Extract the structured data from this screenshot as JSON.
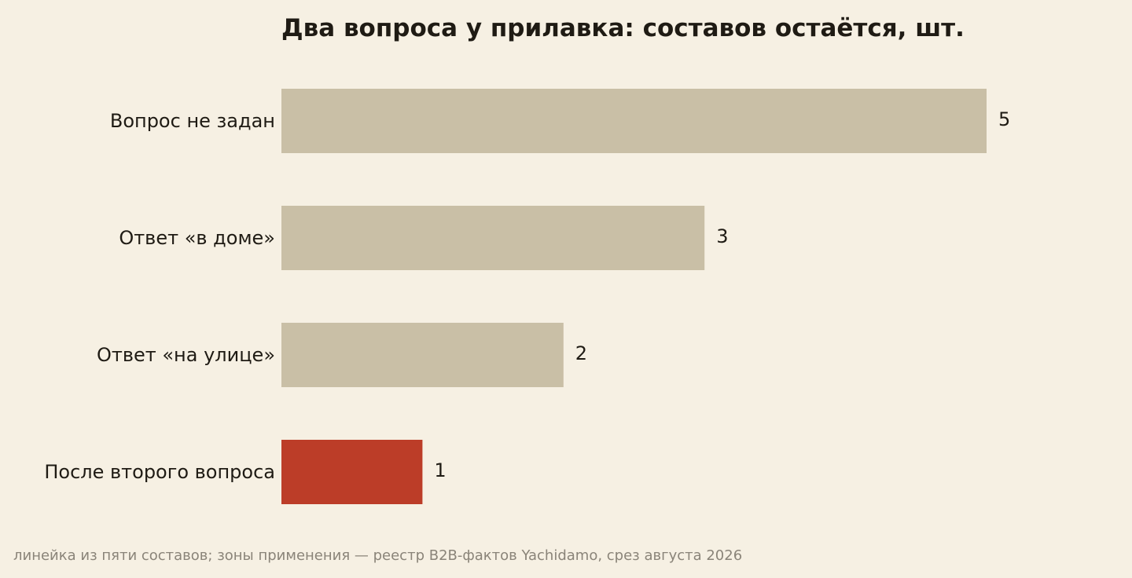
{
  "chart_data": {
    "type": "bar",
    "orientation": "horizontal",
    "title": "Два вопроса у прилавка: составов остаётся, шт.",
    "categories": [
      "Вопрос не задан",
      "Ответ «в доме»",
      "Ответ «на улице»",
      "После второго вопроса"
    ],
    "values": [
      5,
      3,
      2,
      1
    ],
    "xlim": [
      0,
      5
    ],
    "grid": false,
    "legend": "none",
    "colors": {
      "default": "#c9bfa6",
      "highlight": "#bc3d28",
      "highlight_index": 3
    }
  },
  "footer": {
    "source": "линейка из пяти составов; зоны применения — реестр B2B-фактов Yachidamo, срез августа 2026"
  }
}
